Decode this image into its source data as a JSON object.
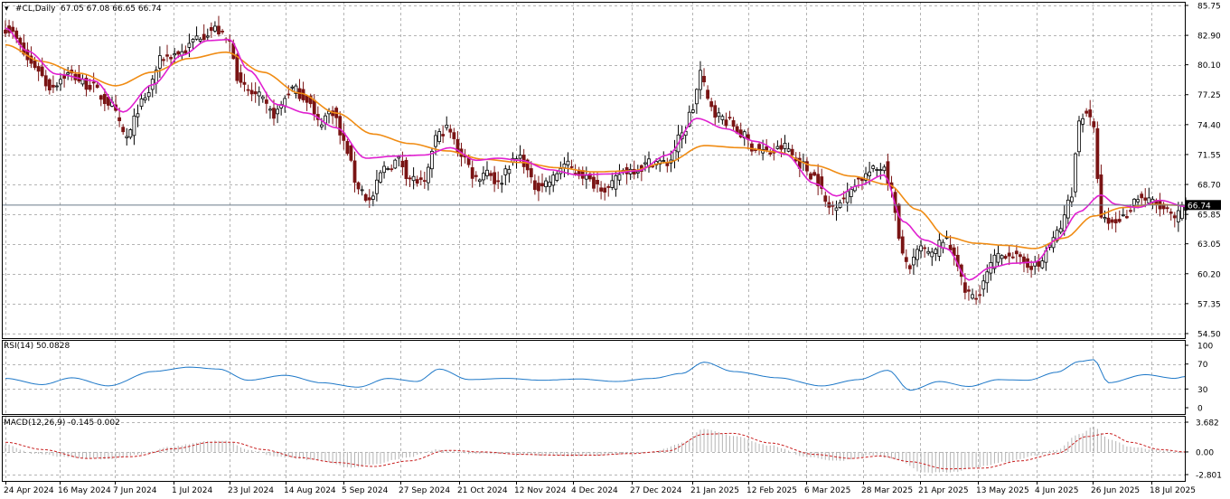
{
  "header": {
    "symbol_label": "#CL,Daily",
    "ohlc_label": "67.05 67.08 66.65 66.74",
    "rsi_label": "RSI(14) 50.0828",
    "macd_label": "MACD(12,26,9) -0.145 0.002"
  },
  "current_price": "66.74",
  "colors": {
    "bull": "#000000",
    "bear": "#7a1414",
    "ma_fast": "#e020d0",
    "ma_slow": "#f08c14",
    "rsi": "#1e78c8",
    "macd_hist": "#b4b4b4",
    "macd_signal": "#c81e1e",
    "price_line": "#6a7a8a",
    "grid": "#b4b4b4"
  },
  "chart_data": [
    {
      "type": "candlestick",
      "title": "#CL,Daily",
      "ylim": [
        54.5,
        85.75
      ],
      "y_ticks": [
        "85.75",
        "82.90",
        "80.10",
        "77.25",
        "74.40",
        "71.55",
        "68.70",
        "65.85",
        "63.05",
        "60.20",
        "57.35",
        "54.50"
      ],
      "x_ticks": [
        "24 Apr 2024",
        "16 May 2024",
        "7 Jun 2024",
        "1 Jul 2024",
        "23 Jul 2024",
        "14 Aug 2024",
        "5 Sep 2024",
        "27 Sep 2024",
        "21 Oct 2024",
        "12 Nov 2024",
        "4 Dec 2024",
        "27 Dec 2024",
        "21 Jan 2025",
        "12 Feb 2025",
        "6 Mar 2025",
        "28 Mar 2025",
        "21 Apr 2025",
        "13 May 2025",
        "4 Jun 2025",
        "26 Jun 2025",
        "18 Jul 2025"
      ],
      "close_anchors": [
        [
          0,
          83.6
        ],
        [
          8,
          80.0
        ],
        [
          12,
          78.0
        ],
        [
          17,
          79.2
        ],
        [
          23,
          78.1
        ],
        [
          28,
          76.5
        ],
        [
          33,
          73.2
        ],
        [
          37,
          76.4
        ],
        [
          43,
          80.8
        ],
        [
          48,
          81.3
        ],
        [
          53,
          82.9
        ],
        [
          57,
          83.5
        ],
        [
          61,
          82.2
        ],
        [
          64,
          78.0
        ],
        [
          68,
          77.2
        ],
        [
          73,
          75.4
        ],
        [
          78,
          77.8
        ],
        [
          82,
          76.9
        ],
        [
          85,
          74.6
        ],
        [
          89,
          75.7
        ],
        [
          92,
          72.6
        ],
        [
          96,
          68.5
        ],
        [
          99,
          67.1
        ],
        [
          103,
          70.2
        ],
        [
          107,
          71.0
        ],
        [
          110,
          69.3
        ],
        [
          114,
          68.7
        ],
        [
          117,
          73.2
        ],
        [
          120,
          74.0
        ],
        [
          124,
          71.6
        ],
        [
          128,
          69.3
        ],
        [
          131,
          70.1
        ],
        [
          134,
          68.7
        ],
        [
          137,
          70.6
        ],
        [
          140,
          71.3
        ],
        [
          144,
          68.5
        ],
        [
          148,
          69.0
        ],
        [
          152,
          70.6
        ],
        [
          156,
          69.8
        ],
        [
          160,
          68.8
        ],
        [
          164,
          68.3
        ],
        [
          168,
          70.0
        ],
        [
          172,
          70.2
        ],
        [
          176,
          70.9
        ],
        [
          180,
          70.7
        ],
        [
          184,
          73.4
        ],
        [
          187,
          76.0
        ],
        [
          189,
          79.4
        ],
        [
          191,
          76.7
        ],
        [
          194,
          75.2
        ],
        [
          197,
          74.6
        ],
        [
          200,
          73.5
        ],
        [
          204,
          72.1
        ],
        [
          208,
          71.7
        ],
        [
          212,
          72.3
        ],
        [
          216,
          70.7
        ],
        [
          220,
          69.5
        ],
        [
          224,
          66.5
        ],
        [
          228,
          67.4
        ],
        [
          232,
          69.2
        ],
        [
          236,
          70.0
        ],
        [
          239,
          70.5
        ],
        [
          241,
          68.0
        ],
        [
          244,
          61.8
        ],
        [
          246,
          60.9
        ],
        [
          249,
          62.6
        ],
        [
          252,
          61.9
        ],
        [
          255,
          63.5
        ],
        [
          258,
          62.2
        ],
        [
          261,
          58.5
        ],
        [
          264,
          57.8
        ],
        [
          266,
          59.5
        ],
        [
          269,
          61.6
        ],
        [
          273,
          62.2
        ],
        [
          277,
          61.2
        ],
        [
          281,
          60.9
        ],
        [
          284,
          62.9
        ],
        [
          287,
          64.6
        ],
        [
          290,
          68.0
        ],
        [
          292,
          74.8
        ],
        [
          294,
          75.7
        ],
        [
          296,
          73.8
        ],
        [
          298,
          65.3
        ],
        [
          301,
          65.0
        ],
        [
          304,
          65.6
        ],
        [
          308,
          67.5
        ],
        [
          312,
          67.0
        ],
        [
          315,
          66.3
        ],
        [
          318,
          65.4
        ],
        [
          321,
          66.74
        ]
      ],
      "ma_fast_anchors": [
        [
          0,
          83.6
        ],
        [
          6,
          81.4
        ],
        [
          14,
          79.2
        ],
        [
          24,
          78.6
        ],
        [
          32,
          75.6
        ],
        [
          40,
          78.2
        ],
        [
          48,
          81.0
        ],
        [
          55,
          82.4
        ],
        [
          61,
          82.5
        ],
        [
          66,
          79.6
        ],
        [
          74,
          76.3
        ],
        [
          82,
          75.5
        ],
        [
          90,
          74.1
        ],
        [
          98,
          71.2
        ],
        [
          106,
          71.4
        ],
        [
          114,
          71.5
        ],
        [
          121,
          72.2
        ],
        [
          128,
          71.0
        ],
        [
          134,
          71.2
        ],
        [
          140,
          71.0
        ],
        [
          148,
          70.1
        ],
        [
          156,
          69.6
        ],
        [
          164,
          69.7
        ],
        [
          172,
          70.0
        ],
        [
          180,
          71.5
        ],
        [
          188,
          75.0
        ],
        [
          196,
          74.0
        ],
        [
          204,
          72.8
        ],
        [
          212,
          71.6
        ],
        [
          220,
          68.8
        ],
        [
          226,
          67.6
        ],
        [
          232,
          68.6
        ],
        [
          239,
          69.6
        ],
        [
          244,
          65.2
        ],
        [
          250,
          63.4
        ],
        [
          256,
          62.6
        ],
        [
          262,
          59.6
        ],
        [
          268,
          60.8
        ],
        [
          274,
          61.2
        ],
        [
          280,
          61.3
        ],
        [
          286,
          63.5
        ],
        [
          292,
          66.1
        ],
        [
          298,
          67.7
        ],
        [
          302,
          66.8
        ],
        [
          308,
          66.5
        ],
        [
          314,
          67.2
        ],
        [
          321,
          66.6
        ]
      ],
      "ma_slow_anchors": [
        [
          0,
          82.0
        ],
        [
          10,
          80.4
        ],
        [
          20,
          79.3
        ],
        [
          30,
          78.1
        ],
        [
          40,
          79.4
        ],
        [
          50,
          80.7
        ],
        [
          60,
          81.3
        ],
        [
          70,
          79.4
        ],
        [
          80,
          77.4
        ],
        [
          90,
          75.5
        ],
        [
          100,
          73.5
        ],
        [
          110,
          72.6
        ],
        [
          120,
          71.9
        ],
        [
          130,
          71.1
        ],
        [
          140,
          70.8
        ],
        [
          150,
          70.3
        ],
        [
          160,
          69.9
        ],
        [
          170,
          70.0
        ],
        [
          180,
          70.8
        ],
        [
          190,
          72.4
        ],
        [
          200,
          72.2
        ],
        [
          210,
          71.8
        ],
        [
          220,
          70.5
        ],
        [
          230,
          69.5
        ],
        [
          240,
          68.7
        ],
        [
          248,
          66.3
        ],
        [
          256,
          63.7
        ],
        [
          264,
          63.1
        ],
        [
          272,
          62.9
        ],
        [
          280,
          62.6
        ],
        [
          288,
          63.6
        ],
        [
          296,
          65.7
        ],
        [
          304,
          66.5
        ],
        [
          312,
          66.8
        ],
        [
          321,
          66.7
        ]
      ]
    },
    {
      "type": "line",
      "title": "RSI(14) 50.0828",
      "ylim": [
        0,
        100
      ],
      "y_ticks": [
        "100",
        "70",
        "30",
        "0"
      ],
      "levels": [
        70,
        30
      ],
      "anchors": [
        [
          0,
          47
        ],
        [
          10,
          37
        ],
        [
          18,
          48
        ],
        [
          28,
          35
        ],
        [
          40,
          58
        ],
        [
          50,
          65
        ],
        [
          58,
          62
        ],
        [
          66,
          44
        ],
        [
          76,
          52
        ],
        [
          86,
          40
        ],
        [
          96,
          33
        ],
        [
          104,
          47
        ],
        [
          112,
          42
        ],
        [
          118,
          62
        ],
        [
          126,
          45
        ],
        [
          136,
          47
        ],
        [
          146,
          44
        ],
        [
          156,
          46
        ],
        [
          166,
          42
        ],
        [
          176,
          47
        ],
        [
          184,
          55
        ],
        [
          190,
          73
        ],
        [
          198,
          58
        ],
        [
          210,
          48
        ],
        [
          222,
          35
        ],
        [
          232,
          45
        ],
        [
          240,
          60
        ],
        [
          246,
          28
        ],
        [
          254,
          42
        ],
        [
          262,
          34
        ],
        [
          270,
          45
        ],
        [
          278,
          44
        ],
        [
          286,
          57
        ],
        [
          292,
          74
        ],
        [
          296,
          77
        ],
        [
          300,
          40
        ],
        [
          310,
          53
        ],
        [
          318,
          47
        ],
        [
          321,
          50
        ]
      ]
    },
    {
      "type": "bar",
      "title": "MACD(12,26,9) -0.145 0.002",
      "ylim": [
        -2.801,
        3.682
      ],
      "y_ticks": [
        "3.682",
        "0.00",
        "-2.801"
      ],
      "hist_anchors": [
        [
          0,
          0.9
        ],
        [
          8,
          -0.2
        ],
        [
          18,
          -0.7
        ],
        [
          28,
          -0.9
        ],
        [
          36,
          -0.3
        ],
        [
          46,
          0.7
        ],
        [
          54,
          1.3
        ],
        [
          60,
          1.4
        ],
        [
          66,
          0.3
        ],
        [
          74,
          -0.6
        ],
        [
          84,
          -1.0
        ],
        [
          94,
          -1.9
        ],
        [
          100,
          -1.6
        ],
        [
          108,
          -0.8
        ],
        [
          118,
          0.3
        ],
        [
          126,
          -0.2
        ],
        [
          136,
          -0.2
        ],
        [
          146,
          -0.4
        ],
        [
          156,
          -0.5
        ],
        [
          166,
          -0.3
        ],
        [
          176,
          0.0
        ],
        [
          184,
          1.1
        ],
        [
          190,
          2.8
        ],
        [
          198,
          2.0
        ],
        [
          208,
          0.8
        ],
        [
          218,
          -0.6
        ],
        [
          226,
          -1.1
        ],
        [
          236,
          -0.4
        ],
        [
          242,
          -0.9
        ],
        [
          250,
          -2.6
        ],
        [
          258,
          -2.5
        ],
        [
          264,
          -1.9
        ],
        [
          272,
          -1.2
        ],
        [
          280,
          -0.5
        ],
        [
          286,
          0.3
        ],
        [
          292,
          2.2
        ],
        [
          296,
          3.1
        ],
        [
          300,
          1.6
        ],
        [
          306,
          0.6
        ],
        [
          314,
          0.2
        ],
        [
          321,
          -0.15
        ]
      ],
      "signal_anchors": [
        [
          0,
          1.2
        ],
        [
          10,
          0.3
        ],
        [
          22,
          -0.8
        ],
        [
          34,
          -0.6
        ],
        [
          46,
          0.4
        ],
        [
          56,
          1.2
        ],
        [
          62,
          1.2
        ],
        [
          70,
          0.3
        ],
        [
          80,
          -0.7
        ],
        [
          90,
          -1.3
        ],
        [
          100,
          -1.8
        ],
        [
          110,
          -1.1
        ],
        [
          120,
          0.2
        ],
        [
          130,
          0.0
        ],
        [
          140,
          -0.3
        ],
        [
          150,
          -0.4
        ],
        [
          160,
          -0.4
        ],
        [
          170,
          -0.2
        ],
        [
          180,
          0.1
        ],
        [
          190,
          2.2
        ],
        [
          198,
          2.3
        ],
        [
          208,
          1.1
        ],
        [
          220,
          -0.3
        ],
        [
          230,
          -0.8
        ],
        [
          238,
          -0.5
        ],
        [
          246,
          -1.2
        ],
        [
          256,
          -2.1
        ],
        [
          266,
          -2.0
        ],
        [
          276,
          -1.1
        ],
        [
          286,
          -0.2
        ],
        [
          294,
          1.9
        ],
        [
          300,
          2.3
        ],
        [
          306,
          1.2
        ],
        [
          314,
          0.3
        ],
        [
          321,
          0.0
        ]
      ]
    }
  ]
}
